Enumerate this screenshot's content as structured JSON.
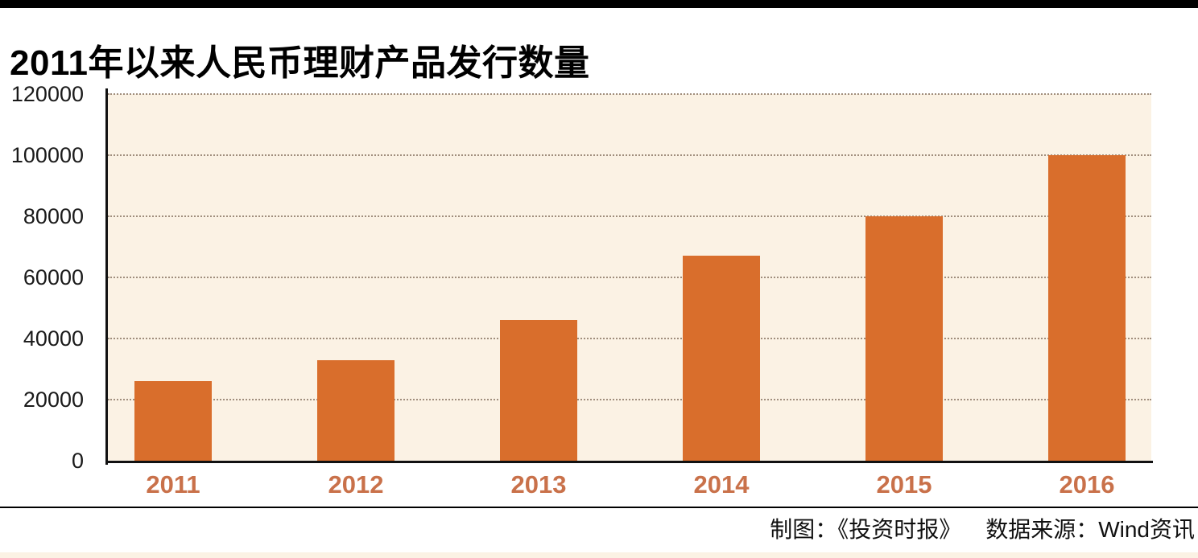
{
  "chart_data": {
    "type": "bar",
    "title": "2011年以来人民币理财产品发行数量",
    "categories": [
      "2011",
      "2012",
      "2013",
      "2014",
      "2015",
      "2016"
    ],
    "values": [
      26000,
      33000,
      46000,
      67000,
      80000,
      100000
    ],
    "xlabel": "",
    "ylabel": "",
    "ylim": [
      0,
      120000
    ],
    "yticks": [
      0,
      20000,
      40000,
      60000,
      80000,
      100000,
      120000
    ],
    "grid": "horizontal-dotted",
    "legend": "none",
    "colors": {
      "bar": "#d96e2c",
      "plot_background": "#fbf2e4",
      "gridline": "#a08e7d",
      "x_tick_label": "#c9714a",
      "y_tick_label": "#1a1a1a",
      "axis": "#111111",
      "top_bar": "#000000",
      "bottom_strip": "#fbf2e4"
    }
  },
  "footer": {
    "credit": "制图：《投资时报》",
    "source": "数据来源：Wind资讯"
  }
}
